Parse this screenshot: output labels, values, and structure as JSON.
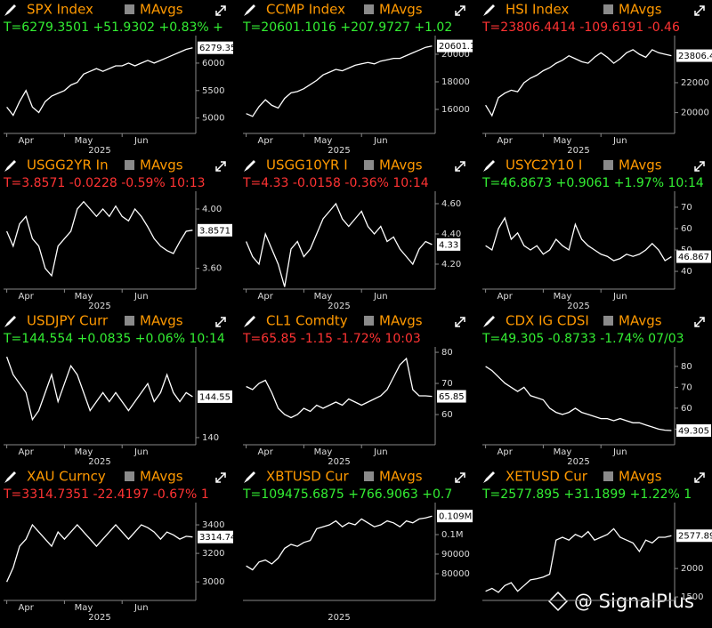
{
  "watermark": "@ SignalPlus",
  "chart_data": [
    {
      "type": "line",
      "title": "SPX Index",
      "legend": "MAvgs",
      "title_color": "#ff9900",
      "info": "T=6279.3501 +51.9302 +0.83% +",
      "info_color": "#33ee33",
      "categories": [
        null,
        null,
        null,
        "Apr",
        null,
        null,
        null,
        null,
        null,
        null,
        null,
        null,
        "May",
        null,
        null,
        null,
        null,
        null,
        null,
        null,
        null,
        "Jun",
        null,
        null,
        null,
        null,
        null,
        null,
        null,
        null
      ],
      "x_label": "2025",
      "values": [
        5200,
        5050,
        5300,
        5500,
        5200,
        5100,
        5300,
        5400,
        5450,
        5500,
        5600,
        5650,
        5800,
        5850,
        5900,
        5850,
        5900,
        5950,
        5950,
        6000,
        5950,
        6000,
        6050,
        6000,
        6050,
        6100,
        6150,
        6200,
        6250,
        6279.35
      ],
      "last_label": "6279.35",
      "color": "#ffffff",
      "ylim": [
        4720,
        6420
      ],
      "yticks": [
        5000,
        5500,
        6000
      ]
    },
    {
      "type": "line",
      "title": "CCMP Index",
      "legend": "MAvgs",
      "title_color": "#ff9900",
      "info": "T=20601.1016 +207.9727 +1.02",
      "info_color": "#33ee33",
      "categories": [
        null,
        null,
        null,
        "Apr",
        null,
        null,
        null,
        null,
        null,
        null,
        null,
        null,
        "May",
        null,
        null,
        null,
        null,
        null,
        null,
        null,
        null,
        "Jun",
        null,
        null,
        null,
        null,
        null,
        null,
        null,
        null
      ],
      "x_label": "2025",
      "values": [
        15700,
        15500,
        16200,
        16700,
        16300,
        16100,
        16800,
        17200,
        17300,
        17500,
        17800,
        18100,
        18500,
        18700,
        18900,
        18800,
        19000,
        19200,
        19300,
        19400,
        19300,
        19500,
        19600,
        19700,
        19700,
        19900,
        20100,
        20300,
        20500,
        20601.1
      ],
      "last_label": "20601.10",
      "color": "#ffffff",
      "ylim": [
        14260,
        21030
      ],
      "yticks": [
        16000,
        18000,
        20000
      ]
    },
    {
      "type": "line",
      "title": "HSI Index",
      "legend": "MAvgs",
      "title_color": "#ff9900",
      "info": "T=23806.4414 -109.6191 -0.46",
      "info_color": "#ff3333",
      "categories": [
        null,
        null,
        null,
        "Apr",
        null,
        null,
        null,
        null,
        null,
        null,
        null,
        null,
        "May",
        null,
        null,
        null,
        null,
        null,
        null,
        null,
        null,
        "Jun",
        null,
        null,
        null,
        null,
        null,
        null,
        null,
        null
      ],
      "x_label": "2025",
      "values": [
        20500,
        19800,
        21000,
        21300,
        21500,
        21400,
        22000,
        22300,
        22500,
        22800,
        23000,
        23300,
        23500,
        23800,
        23600,
        23400,
        23300,
        23700,
        24000,
        23700,
        23300,
        23600,
        24000,
        24200,
        23900,
        23700,
        24200,
        24000,
        23900,
        23806.44
      ],
      "last_label": "23806.44",
      "color": "#ffffff",
      "ylim": [
        18610,
        24850
      ],
      "yticks": [
        20000,
        22000
      ]
    },
    {
      "type": "line",
      "title": "USGG2YR In",
      "legend": "MAvgs",
      "title_color": "#ff9900",
      "info": "T=3.8571 -0.0228 -0.59% 10:13",
      "info_color": "#ff3333",
      "categories": [
        null,
        null,
        null,
        "Apr",
        null,
        null,
        null,
        null,
        null,
        null,
        null,
        null,
        "May",
        null,
        null,
        null,
        null,
        null,
        null,
        null,
        null,
        "Jun",
        null,
        null,
        null,
        null,
        null,
        null,
        null,
        null
      ],
      "x_label": "2025",
      "values": [
        3.85,
        3.75,
        3.9,
        3.95,
        3.8,
        3.75,
        3.6,
        3.55,
        3.75,
        3.8,
        3.85,
        4.0,
        4.05,
        4.0,
        3.95,
        4.0,
        3.95,
        4.02,
        3.95,
        3.92,
        4.0,
        3.95,
        3.88,
        3.8,
        3.75,
        3.72,
        3.7,
        3.78,
        3.85,
        3.8571
      ],
      "last_label": "3.8571",
      "color": "#ffffff",
      "ylim": [
        3.46,
        4.09
      ],
      "yticks": [
        {
          "value": 3.6,
          "label": "3.60"
        },
        {
          "value": 4.0,
          "label": "4.00"
        }
      ]
    },
    {
      "type": "line",
      "title": "USGG10YR I",
      "legend": "MAvgs",
      "title_color": "#ff9900",
      "info": "T=4.33 -0.0158 -0.36% 10:14",
      "info_color": "#ff3333",
      "categories": [
        null,
        null,
        null,
        "Apr",
        null,
        null,
        null,
        null,
        null,
        null,
        null,
        null,
        "May",
        null,
        null,
        null,
        null,
        null,
        null,
        null,
        null,
        "Jun",
        null,
        null,
        null,
        null,
        null,
        null,
        null,
        null
      ],
      "x_label": "2025",
      "values": [
        4.35,
        4.25,
        4.2,
        4.4,
        4.3,
        4.2,
        4.05,
        4.3,
        4.35,
        4.25,
        4.3,
        4.4,
        4.5,
        4.55,
        4.6,
        4.5,
        4.45,
        4.5,
        4.55,
        4.45,
        4.4,
        4.45,
        4.35,
        4.38,
        4.3,
        4.25,
        4.2,
        4.3,
        4.35,
        4.33
      ],
      "last_label": "4.33",
      "color": "#ffffff",
      "ylim": [
        4.035,
        4.653
      ],
      "yticks": [
        {
          "value": 4.2,
          "label": "4.20"
        },
        {
          "value": 4.4,
          "label": "4.40"
        },
        {
          "value": 4.6,
          "label": "4.60"
        }
      ]
    },
    {
      "type": "line",
      "title": "USYC2Y10 I",
      "legend": "MAvgs",
      "title_color": "#ff9900",
      "info": "T=46.8673 +0.9061 +1.97% 10:14",
      "info_color": "#33ee33",
      "categories": [
        null,
        null,
        null,
        "Apr",
        null,
        null,
        null,
        null,
        null,
        null,
        null,
        null,
        "May",
        null,
        null,
        null,
        null,
        null,
        null,
        null,
        null,
        "Jun",
        null,
        null,
        null,
        null,
        null,
        null,
        null,
        null
      ],
      "x_label": "2025",
      "values": [
        52,
        50,
        60,
        65,
        55,
        58,
        52,
        50,
        52,
        48,
        50,
        55,
        52,
        50,
        62,
        55,
        52,
        50,
        48,
        47,
        45,
        46,
        48,
        47,
        48,
        50,
        53,
        50,
        45,
        46.8673
      ],
      "last_label": "46.867",
      "color": "#ffffff",
      "ylim": [
        31.7,
        75.4
      ],
      "yticks": [
        40,
        50,
        60,
        70
      ]
    },
    {
      "type": "line",
      "title": "USDJPY Curr",
      "legend": "MAvgs",
      "title_color": "#ff9900",
      "info": "T=144.554 +0.0835 +0.06% 10:14",
      "info_color": "#33ee33",
      "categories": [
        null,
        null,
        null,
        "Apr",
        null,
        null,
        null,
        null,
        null,
        null,
        null,
        null,
        "May",
        null,
        null,
        null,
        null,
        null,
        null,
        null,
        null,
        "Jun",
        null,
        null,
        null,
        null,
        null,
        null,
        null,
        null
      ],
      "x_label": "2025",
      "values": [
        149,
        147,
        146,
        145,
        142,
        143,
        145,
        147,
        144,
        146,
        148,
        147,
        145,
        143,
        144,
        145,
        144,
        145,
        144,
        143,
        144,
        145,
        146,
        144,
        145,
        147,
        145,
        144,
        145,
        144.554
      ],
      "last_label": "144.55",
      "color": "#ffffff",
      "ylim": [
        139.2,
        149.6
      ],
      "yticks": [
        140
      ]
    },
    {
      "type": "line",
      "title": "CL1 Comdty",
      "legend": "MAvgs",
      "title_color": "#ff9900",
      "info": "T=65.85 -1.15 -1.72% 10:03",
      "info_color": "#ff3333",
      "categories": [
        null,
        null,
        null,
        "Apr",
        null,
        null,
        null,
        null,
        null,
        null,
        null,
        null,
        "May",
        null,
        null,
        null,
        null,
        null,
        null,
        null,
        null,
        "Jun",
        null,
        null,
        null,
        null,
        null,
        null,
        null,
        null
      ],
      "x_label": "2025",
      "values": [
        69,
        68,
        70,
        71,
        67,
        62,
        60,
        59,
        60,
        62,
        61,
        63,
        62,
        63,
        64,
        63,
        65,
        64,
        63,
        64,
        65,
        66,
        68,
        72,
        76,
        78,
        68,
        66,
        66,
        65.85
      ],
      "last_label": "65.85",
      "color": "#ffffff",
      "ylim": [
        50.3,
        80.3
      ],
      "yticks": [
        60,
        70,
        80
      ]
    },
    {
      "type": "line",
      "title": "CDX IG CDSI",
      "legend": "MAvgs",
      "title_color": "#ff9900",
      "info": "T=49.305 -0.8733 -1.74% 07/03",
      "info_color": "#33ee33",
      "categories": [
        null,
        null,
        null,
        "Apr",
        null,
        null,
        null,
        null,
        null,
        null,
        null,
        null,
        "May",
        null,
        null,
        null,
        null,
        null,
        null,
        null,
        null,
        "Jun",
        null,
        null,
        null,
        null,
        null,
        null,
        null,
        null
      ],
      "x_label": "2025",
      "values": [
        80,
        78,
        75,
        72,
        70,
        68,
        70,
        66,
        65,
        64,
        60,
        58,
        57,
        58,
        60,
        58,
        57,
        56,
        55,
        55,
        54,
        55,
        54,
        53,
        53,
        52,
        51,
        50,
        49.5,
        49.305
      ],
      "last_label": "49.305",
      "color": "#ffffff",
      "ylim": [
        42.5,
        87.2
      ],
      "yticks": [
        50,
        60,
        70,
        80
      ]
    },
    {
      "type": "line",
      "title": "XAU Curncy",
      "legend": "MAvgs",
      "title_color": "#ff9900",
      "info": "T=3314.7351 -22.4197 -0.67% 1",
      "info_color": "#ff3333",
      "categories": [
        null,
        null,
        null,
        "Apr",
        null,
        null,
        null,
        null,
        null,
        null,
        null,
        null,
        "May",
        null,
        null,
        null,
        null,
        null,
        null,
        null,
        null,
        "Jun",
        null,
        null,
        null,
        null,
        null,
        null,
        null,
        null
      ],
      "x_label": "2025",
      "values": [
        3000,
        3100,
        3250,
        3300,
        3400,
        3350,
        3300,
        3250,
        3350,
        3300,
        3350,
        3400,
        3350,
        3300,
        3250,
        3300,
        3350,
        3400,
        3350,
        3300,
        3350,
        3400,
        3380,
        3350,
        3300,
        3350,
        3330,
        3300,
        3320,
        3314.74
      ],
      "last_label": "3314.74",
      "color": "#ffffff",
      "ylim": [
        2870,
        3525
      ],
      "yticks": [
        3000,
        3200,
        3400
      ]
    },
    {
      "type": "line",
      "title": "XBTUSD Cur",
      "legend": "MAvgs",
      "title_color": "#ff9900",
      "info": "T=109475.6875 +766.9063 +0.7",
      "info_color": "#33ee33",
      "categories": [
        null,
        null,
        null,
        null,
        null,
        null,
        null,
        null,
        null,
        null,
        null,
        null,
        null,
        null,
        null,
        null,
        null,
        null,
        null,
        null,
        null,
        null,
        null,
        null,
        null,
        null,
        null,
        null,
        null,
        null
      ],
      "x_label": "2025",
      "values": [
        84000,
        82000,
        86000,
        87000,
        85000,
        88000,
        93000,
        95000,
        94000,
        96000,
        97000,
        103000,
        104000,
        105000,
        107000,
        104000,
        106000,
        105000,
        108000,
        106000,
        104000,
        105000,
        107000,
        106000,
        104000,
        107000,
        106000,
        108000,
        108500,
        109475.69
      ],
      "last_label": "0.109M",
      "color": "#ffffff",
      "ylim": [
        66360,
        114090
      ],
      "yticks": [
        80000,
        90000,
        {
          "value": 100000,
          "label": "0.1M"
        }
      ]
    },
    {
      "type": "line",
      "title": "XETUSD Cur",
      "legend": "MAvgs",
      "title_color": "#ff9900",
      "info": "T=2577.895 +31.1899 +1.22% 1",
      "info_color": "#33ee33",
      "categories": [
        null,
        null,
        null,
        null,
        null,
        null,
        null,
        null,
        null,
        null,
        null,
        null,
        null,
        null,
        null,
        null,
        null,
        null,
        null,
        null,
        null,
        null,
        null,
        null,
        null,
        null,
        null,
        null,
        null,
        null
      ],
      "values": [
        1600,
        1650,
        1580,
        1700,
        1750,
        1600,
        1700,
        1800,
        1820,
        1850,
        1900,
        2500,
        2550,
        2500,
        2600,
        2550,
        2650,
        2500,
        2550,
        2600,
        2700,
        2550,
        2500,
        2450,
        2300,
        2500,
        2450,
        2550,
        2550,
        2577.895
      ],
      "last_label": "2577.895",
      "color": "#ffffff",
      "ylim": [
        1438,
        3083
      ],
      "yticks": [
        1500,
        2000
      ]
    }
  ]
}
